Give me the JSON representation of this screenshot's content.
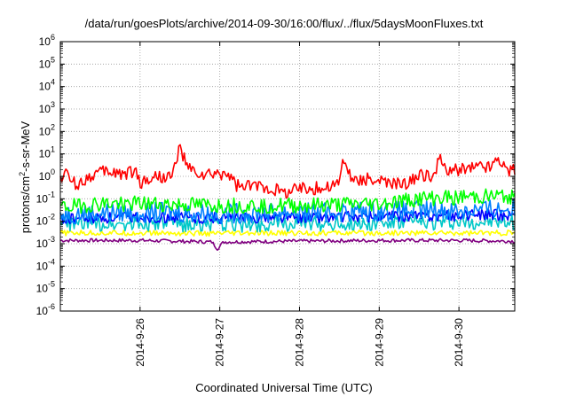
{
  "chart_data": {
    "type": "line",
    "title": "/data/run/goesPlots/archive/2014-09-30/16:00/flux/../flux/5daysMoonFluxes.txt",
    "xlabel": "Coordinated Universal Time (UTC)",
    "ylabel": {
      "prefix": "protons/cm",
      "sup": "2",
      "suffix": "-s-sr-MeV"
    },
    "x_ticks": [
      "2014-9-26",
      "2014-9-27",
      "2014-9-28",
      "2014-9-29",
      "2014-9-30"
    ],
    "x_range_days": [
      "2014-09-25",
      "2014-09-30"
    ],
    "y_scale": "log",
    "ylim": [
      1e-06,
      1000000.0
    ],
    "y_ticks": [
      {
        "base": "10",
        "exp": "-6"
      },
      {
        "base": "10",
        "exp": "-5"
      },
      {
        "base": "10",
        "exp": "-4"
      },
      {
        "base": "10",
        "exp": "-3"
      },
      {
        "base": "10",
        "exp": "-2"
      },
      {
        "base": "10",
        "exp": "-1"
      },
      {
        "base": "10",
        "exp": "0"
      },
      {
        "base": "10",
        "exp": "1"
      },
      {
        "base": "10",
        "exp": "2"
      },
      {
        "base": "10",
        "exp": "3"
      },
      {
        "base": "10",
        "exp": "4"
      },
      {
        "base": "10",
        "exp": "5"
      },
      {
        "base": "10",
        "exp": "6"
      }
    ],
    "grid": true,
    "series": [
      {
        "color": "#800080",
        "baseline": 0.0014,
        "noise": 0.08,
        "points": [
          [
            0.0,
            0.0014
          ],
          [
            1.0,
            0.0014
          ],
          [
            1.9,
            0.0012
          ],
          [
            1.97,
            0.0006
          ],
          [
            2.05,
            0.0012
          ],
          [
            3.0,
            0.0013
          ],
          [
            4.0,
            0.0014
          ],
          [
            5.0,
            0.0014
          ],
          [
            5.7,
            0.0013
          ]
        ]
      },
      {
        "color": "#ffff00",
        "baseline": 0.003,
        "noise": 0.12,
        "points": [
          [
            0.0,
            0.003
          ],
          [
            1.0,
            0.003
          ],
          [
            2.0,
            0.0028
          ],
          [
            3.0,
            0.003
          ],
          [
            4.0,
            0.003
          ],
          [
            5.0,
            0.003
          ],
          [
            5.7,
            0.003
          ]
        ]
      },
      {
        "color": "#00c8c8",
        "baseline": 0.008,
        "noise": 0.35,
        "points": [
          [
            0.0,
            0.008
          ],
          [
            1.0,
            0.008
          ],
          [
            2.0,
            0.007
          ],
          [
            3.0,
            0.008
          ],
          [
            4.0,
            0.008
          ],
          [
            5.0,
            0.009
          ],
          [
            5.7,
            0.009
          ]
        ]
      },
      {
        "color": "#0000ff",
        "baseline": 0.015,
        "noise": 0.25,
        "points": [
          [
            0.0,
            0.012
          ],
          [
            1.0,
            0.015
          ],
          [
            2.0,
            0.014
          ],
          [
            3.0,
            0.015
          ],
          [
            4.0,
            0.016
          ],
          [
            5.0,
            0.018
          ],
          [
            5.7,
            0.02
          ]
        ]
      },
      {
        "color": "#0080ff",
        "baseline": 0.025,
        "noise": 0.45,
        "points": [
          [
            0.0,
            0.02
          ],
          [
            1.0,
            0.025
          ],
          [
            2.0,
            0.022
          ],
          [
            3.0,
            0.025
          ],
          [
            4.0,
            0.027
          ],
          [
            5.0,
            0.03
          ],
          [
            5.7,
            0.035
          ]
        ]
      },
      {
        "color": "#00ff00",
        "baseline": 0.06,
        "noise": 0.35,
        "points": [
          [
            0.0,
            0.04
          ],
          [
            0.5,
            0.06
          ],
          [
            1.0,
            0.06
          ],
          [
            2.0,
            0.05
          ],
          [
            3.0,
            0.05
          ],
          [
            4.0,
            0.06
          ],
          [
            4.5,
            0.1
          ],
          [
            5.0,
            0.12
          ],
          [
            5.7,
            0.13
          ]
        ]
      },
      {
        "color": "#ff0000",
        "baseline": 1.0,
        "noise": 0.3,
        "points": [
          [
            0.0,
            0.8
          ],
          [
            0.05,
            1.5
          ],
          [
            0.2,
            0.4
          ],
          [
            0.4,
            1.2
          ],
          [
            0.6,
            1.6
          ],
          [
            0.8,
            1.3
          ],
          [
            0.95,
            1.7
          ],
          [
            1.0,
            0.5
          ],
          [
            1.2,
            1.0
          ],
          [
            1.4,
            0.9
          ],
          [
            1.5,
            20.0
          ],
          [
            1.6,
            2.0
          ],
          [
            1.8,
            1.0
          ],
          [
            2.0,
            1.2
          ],
          [
            2.1,
            1.4
          ],
          [
            2.2,
            0.4
          ],
          [
            2.3,
            0.3
          ],
          [
            2.5,
            0.4
          ],
          [
            2.8,
            0.2
          ],
          [
            3.0,
            0.3
          ],
          [
            3.3,
            0.3
          ],
          [
            3.5,
            0.5
          ],
          [
            3.55,
            8.0
          ],
          [
            3.65,
            0.6
          ],
          [
            3.8,
            0.8
          ],
          [
            4.0,
            0.6
          ],
          [
            4.2,
            0.4
          ],
          [
            4.4,
            0.6
          ],
          [
            4.5,
            1.0
          ],
          [
            4.6,
            1.2
          ],
          [
            4.7,
            1.0
          ],
          [
            4.75,
            6.0
          ],
          [
            4.85,
            1.5
          ],
          [
            5.0,
            2.0
          ],
          [
            5.2,
            2.5
          ],
          [
            5.3,
            3.0
          ],
          [
            5.4,
            2.5
          ],
          [
            5.5,
            8.0
          ],
          [
            5.55,
            3.0
          ],
          [
            5.6,
            2.0
          ],
          [
            5.7,
            1.8
          ]
        ]
      }
    ]
  }
}
